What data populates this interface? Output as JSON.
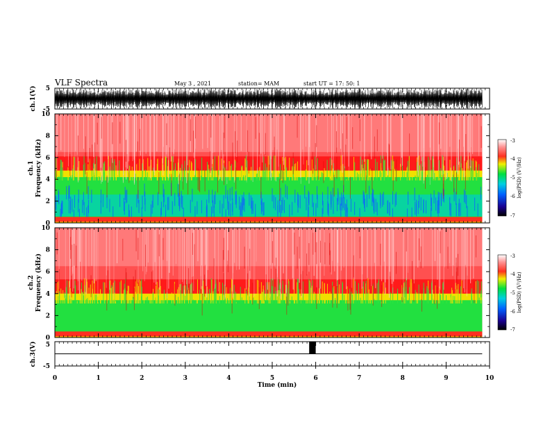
{
  "header": {
    "title": "VLF Spectra",
    "date": "May 3  , 2021",
    "station": "station= MAM",
    "start": "start  UT  =    17: 50: 1"
  },
  "colors": {
    "spectrum_low": "#000080",
    "spectrum_mid": "#00e040",
    "spectrum_high": "#ff2020",
    "trace": "#000000"
  },
  "chart_data": [
    {
      "type": "line",
      "panel": "ch1-waveform",
      "ylabel": "ch.1(V)",
      "ylim": [
        -5,
        5
      ],
      "yticks": [
        "5",
        "-5"
      ],
      "xlim": [
        0,
        10
      ],
      "data_end_min": 9.83,
      "description_values": {
        "amplitude_range": [
          -5,
          5
        ]
      }
    },
    {
      "type": "heatmap",
      "panel": "ch1-spectrogram",
      "ylabel": "ch.1\nFrequency (kHz)",
      "ylabel_line1": "ch.1",
      "ylabel_line2": "Frequency (kHz)",
      "ylim": [
        0,
        10
      ],
      "yticks": [
        "0",
        "2",
        "4",
        "6",
        "8",
        "10"
      ],
      "xlim": [
        0,
        10
      ],
      "data_end_min": 9.83,
      "green_band_top_khz": 4.5,
      "colorbar": {
        "label": "log(PSD) (V²/Hz)",
        "ticks": [
          "-3",
          "-4",
          "-5",
          "-6",
          "-7"
        ],
        "range": [
          -7,
          -3
        ]
      }
    },
    {
      "type": "heatmap",
      "panel": "ch2-spectrogram",
      "ylabel_line1": "ch.2",
      "ylabel_line2": "Frequency (kHz)",
      "ylim": [
        0,
        10
      ],
      "yticks": [
        "0",
        "2",
        "4",
        "6",
        "8",
        "10"
      ],
      "xlim": [
        0,
        10
      ],
      "data_end_min": 9.83,
      "green_band_top_khz": 3.7,
      "colorbar": {
        "label": "log(PSD) (V²/Hz)",
        "ticks": [
          "-3",
          "-4",
          "-5",
          "-6",
          "-7"
        ],
        "range": [
          -7,
          -3
        ]
      }
    },
    {
      "type": "line",
      "panel": "ch3-waveform",
      "ylabel": "ch.3(V)",
      "ylim": [
        -5,
        5
      ],
      "yticks": [
        "5",
        "-5"
      ],
      "xlim": [
        0,
        10
      ],
      "xlabel": "Time  (min)",
      "xticks": [
        "0",
        "1",
        "2",
        "3",
        "4",
        "5",
        "6",
        "7",
        "8",
        "9",
        "10"
      ],
      "baseline_v": 0,
      "pulse": {
        "start_min": 5.85,
        "end_min": 6.0,
        "low_v": 0,
        "high_v": 5
      }
    }
  ]
}
